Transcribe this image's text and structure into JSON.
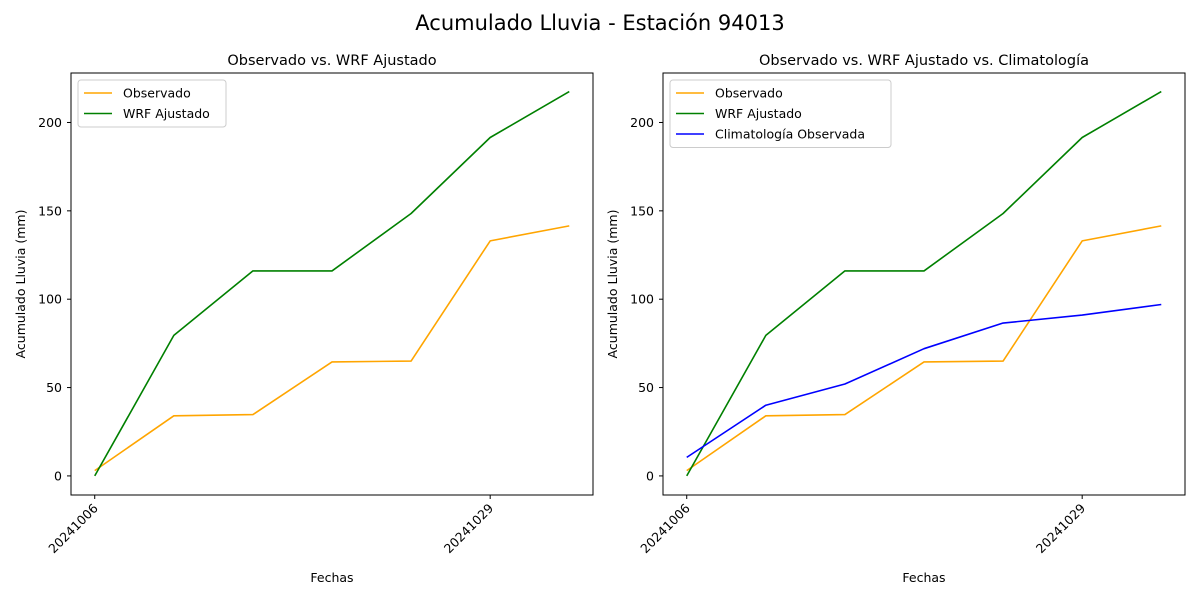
{
  "figure": {
    "suptitle": "Acumulado Lluvia - Estación 94013"
  },
  "colors": {
    "observado": "#ffa500",
    "wrf": "#008000",
    "climatologia": "#0000ff"
  },
  "chart_data": [
    {
      "type": "line",
      "title": "Observado vs. WRF Ajustado",
      "xlabel": "Fechas",
      "ylabel": "Acumulado Lluvia (mm)",
      "x": [
        0,
        1,
        2,
        3,
        4,
        5,
        6
      ],
      "x_ticks": [
        {
          "pos": 0,
          "label": "20241006"
        },
        {
          "pos": 5,
          "label": "20241029"
        }
      ],
      "ylim": [
        -10.8,
        228
      ],
      "y_ticks": [
        0,
        50,
        100,
        150,
        200
      ],
      "grid": false,
      "legend": "upper left",
      "series": [
        {
          "name": "Observado",
          "color": "#ffa500",
          "values": [
            3,
            34,
            34.7,
            64.5,
            65,
            133,
            141.5
          ]
        },
        {
          "name": "WRF Ajustado",
          "color": "#008000",
          "values": [
            0,
            79.5,
            116,
            116,
            148.5,
            191.5,
            217.5
          ]
        }
      ]
    },
    {
      "type": "line",
      "title": "Observado vs. WRF Ajustado vs. Climatología",
      "xlabel": "Fechas",
      "ylabel": "Acumulado Lluvia (mm)",
      "x": [
        0,
        1,
        2,
        3,
        4,
        5,
        6
      ],
      "x_ticks": [
        {
          "pos": 0,
          "label": "20241006"
        },
        {
          "pos": 5,
          "label": "20241029"
        }
      ],
      "ylim": [
        -10.8,
        228
      ],
      "y_ticks": [
        0,
        50,
        100,
        150,
        200
      ],
      "grid": false,
      "legend": "upper left",
      "series": [
        {
          "name": "Observado",
          "color": "#ffa500",
          "values": [
            3,
            34,
            34.7,
            64.5,
            65,
            133,
            141.5
          ]
        },
        {
          "name": "WRF Ajustado",
          "color": "#008000",
          "values": [
            0,
            79.5,
            116,
            116,
            148.5,
            191.5,
            217.5
          ]
        },
        {
          "name": "Climatología Observada",
          "color": "#0000ff",
          "values": [
            10.5,
            40,
            52,
            72,
            86.5,
            91,
            97
          ]
        }
      ]
    }
  ]
}
